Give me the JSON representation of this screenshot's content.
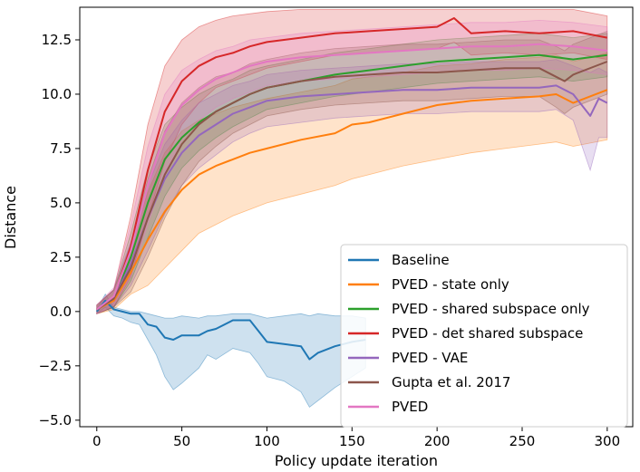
{
  "chart_data": {
    "type": "line",
    "title": "",
    "xlabel": "Policy update iteration",
    "ylabel": "Distance",
    "xlim": [
      -10,
      315
    ],
    "ylim": [
      -5.3,
      14
    ],
    "xticks": [
      {
        "value": 0,
        "label": "0"
      },
      {
        "value": 50,
        "label": "50"
      },
      {
        "value": 100,
        "label": "100"
      },
      {
        "value": 150,
        "label": "150"
      },
      {
        "value": 200,
        "label": "200"
      },
      {
        "value": 250,
        "label": "250"
      },
      {
        "value": 300,
        "label": "300"
      }
    ],
    "yticks": [
      {
        "value": -5.0,
        "label": "−5.0"
      },
      {
        "value": -2.5,
        "label": "−2.5"
      },
      {
        "value": 0.0,
        "label": "0.0"
      },
      {
        "value": 2.5,
        "label": "2.5"
      },
      {
        "value": 5.0,
        "label": "5.0"
      },
      {
        "value": 7.5,
        "label": "7.5"
      },
      {
        "value": 10.0,
        "label": "10.0"
      },
      {
        "value": 12.5,
        "label": "12.5"
      }
    ],
    "grid": false,
    "legend_position": "lower-right",
    "shaded_band": "mean ± spread",
    "series": [
      {
        "name": "Baseline",
        "color": "#1f77b4",
        "x": [
          0,
          5,
          10,
          15,
          20,
          25,
          30,
          35,
          40,
          45,
          50,
          60,
          65,
          70,
          80,
          90,
          95,
          100,
          110,
          120,
          125,
          130,
          140,
          150,
          158
        ],
        "mean": [
          0.0,
          0.5,
          0.1,
          0.0,
          -0.1,
          -0.1,
          -0.6,
          -0.7,
          -1.2,
          -1.3,
          -1.1,
          -1.1,
          -0.9,
          -0.8,
          -0.4,
          -0.4,
          -0.9,
          -1.4,
          -1.5,
          -1.6,
          -2.2,
          -1.9,
          -1.6,
          -1.4,
          -1.3
        ],
        "lower": [
          -0.1,
          0.2,
          -0.2,
          -0.3,
          -0.5,
          -0.6,
          -1.3,
          -2.0,
          -3.0,
          -3.6,
          -3.3,
          -2.6,
          -2.0,
          -2.2,
          -1.7,
          -1.9,
          -2.4,
          -3.0,
          -3.2,
          -3.7,
          -4.4,
          -4.1,
          -3.5,
          -3.0,
          -2.6
        ],
        "upper": [
          0.1,
          0.8,
          0.2,
          0.1,
          0.0,
          0.0,
          -0.1,
          -0.2,
          -0.3,
          -0.3,
          -0.2,
          -0.3,
          -0.2,
          -0.2,
          -0.1,
          -0.1,
          -0.2,
          -0.3,
          -0.2,
          -0.1,
          -0.2,
          -0.1,
          -0.2,
          -0.2,
          -0.3
        ]
      },
      {
        "name": "PVED - state only",
        "color": "#ff7f0e",
        "x": [
          0,
          10,
          20,
          30,
          40,
          50,
          60,
          70,
          80,
          90,
          100,
          120,
          140,
          150,
          160,
          180,
          200,
          220,
          240,
          260,
          270,
          280,
          300
        ],
        "mean": [
          0.1,
          0.5,
          1.8,
          3.3,
          4.6,
          5.6,
          6.3,
          6.7,
          7.0,
          7.3,
          7.5,
          7.9,
          8.2,
          8.6,
          8.7,
          9.1,
          9.5,
          9.7,
          9.8,
          9.9,
          10.0,
          9.6,
          10.2
        ],
        "lower": [
          -0.1,
          0.1,
          0.8,
          1.2,
          2.0,
          2.8,
          3.6,
          4.0,
          4.4,
          4.7,
          5.0,
          5.4,
          5.8,
          6.1,
          6.3,
          6.7,
          7.0,
          7.3,
          7.5,
          7.7,
          7.8,
          7.6,
          7.9
        ],
        "upper": [
          0.3,
          1.0,
          3.0,
          5.5,
          7.3,
          8.3,
          8.8,
          9.1,
          9.4,
          9.6,
          9.8,
          10.1,
          10.4,
          10.7,
          10.8,
          11.0,
          11.3,
          11.4,
          11.6,
          11.7,
          11.8,
          11.5,
          11.9
        ]
      },
      {
        "name": "PVED - shared subspace only",
        "color": "#2ca02c",
        "x": [
          0,
          10,
          20,
          30,
          40,
          50,
          60,
          70,
          80,
          90,
          100,
          120,
          140,
          160,
          180,
          200,
          220,
          240,
          260,
          280,
          300
        ],
        "mean": [
          0.1,
          0.6,
          2.5,
          5.0,
          7.0,
          8.0,
          8.7,
          9.2,
          9.6,
          10.0,
          10.3,
          10.6,
          10.9,
          11.1,
          11.3,
          11.5,
          11.6,
          11.7,
          11.8,
          11.6,
          11.8
        ],
        "lower": [
          -0.1,
          0.2,
          1.4,
          3.4,
          5.3,
          6.6,
          7.4,
          8.0,
          8.5,
          8.9,
          9.3,
          9.6,
          9.9,
          10.1,
          10.3,
          10.5,
          10.6,
          10.7,
          10.8,
          10.6,
          10.8
        ],
        "upper": [
          0.3,
          1.0,
          3.6,
          6.6,
          8.6,
          9.4,
          10.0,
          10.4,
          10.7,
          11.1,
          11.3,
          11.6,
          11.9,
          12.1,
          12.3,
          12.5,
          12.6,
          12.7,
          12.8,
          12.6,
          12.8
        ]
      },
      {
        "name": "PVED - det shared subspace",
        "color": "#d62728",
        "x": [
          0,
          10,
          20,
          30,
          40,
          50,
          60,
          70,
          80,
          90,
          100,
          120,
          140,
          160,
          180,
          200,
          210,
          220,
          240,
          260,
          280,
          300
        ],
        "mean": [
          0.1,
          0.6,
          3.0,
          6.5,
          9.2,
          10.6,
          11.3,
          11.7,
          11.9,
          12.2,
          12.4,
          12.6,
          12.8,
          12.9,
          13.0,
          13.1,
          13.5,
          12.8,
          12.9,
          12.8,
          12.9,
          12.6
        ],
        "lower": [
          -0.1,
          0.2,
          1.6,
          4.3,
          6.9,
          8.6,
          9.6,
          10.3,
          10.6,
          10.9,
          11.2,
          11.5,
          11.8,
          11.9,
          12.0,
          12.1,
          12.4,
          11.8,
          11.9,
          11.8,
          11.9,
          11.6
        ],
        "upper": [
          0.3,
          1.0,
          4.4,
          8.6,
          11.3,
          12.5,
          13.1,
          13.4,
          13.6,
          13.7,
          13.8,
          13.9,
          13.9,
          13.9,
          13.9,
          13.9,
          13.9,
          13.9,
          13.9,
          13.9,
          13.9,
          13.6
        ]
      },
      {
        "name": "PVED - VAE",
        "color": "#9467bd",
        "x": [
          0,
          10,
          20,
          30,
          40,
          50,
          60,
          70,
          80,
          90,
          100,
          120,
          140,
          160,
          180,
          200,
          220,
          240,
          260,
          270,
          280,
          290,
          295,
          300
        ],
        "mean": [
          0.1,
          0.6,
          2.2,
          4.3,
          6.1,
          7.3,
          8.1,
          8.6,
          9.1,
          9.4,
          9.7,
          9.9,
          10.0,
          10.1,
          10.2,
          10.2,
          10.3,
          10.3,
          10.3,
          10.4,
          10.0,
          9.0,
          9.8,
          9.6
        ],
        "lower": [
          -0.1,
          0.2,
          1.2,
          2.8,
          4.5,
          5.8,
          6.6,
          7.2,
          7.8,
          8.2,
          8.5,
          8.7,
          8.9,
          9.0,
          9.1,
          9.1,
          9.2,
          9.2,
          9.2,
          9.3,
          8.8,
          6.5,
          8.0,
          8.0
        ],
        "upper": [
          0.3,
          1.0,
          3.2,
          5.8,
          7.7,
          8.8,
          9.6,
          10.0,
          10.4,
          10.6,
          10.9,
          11.1,
          11.2,
          11.3,
          11.4,
          11.4,
          11.5,
          11.5,
          11.5,
          11.6,
          11.3,
          11.0,
          11.2,
          11.0
        ]
      },
      {
        "name": "Gupta et al. 2017",
        "color": "#8c564b",
        "x": [
          0,
          10,
          20,
          30,
          40,
          50,
          60,
          70,
          80,
          90,
          100,
          120,
          140,
          160,
          180,
          200,
          220,
          240,
          260,
          270,
          275,
          280,
          300
        ],
        "mean": [
          0.1,
          0.6,
          2.0,
          4.3,
          6.3,
          7.7,
          8.6,
          9.2,
          9.6,
          10.0,
          10.3,
          10.6,
          10.8,
          10.9,
          11.0,
          11.0,
          11.1,
          11.2,
          11.2,
          10.8,
          10.6,
          10.9,
          11.5
        ],
        "lower": [
          -0.1,
          0.2,
          0.9,
          2.5,
          4.3,
          5.8,
          6.9,
          7.6,
          8.2,
          8.6,
          9.0,
          9.3,
          9.5,
          9.6,
          9.7,
          9.7,
          9.8,
          9.9,
          9.9,
          9.4,
          9.1,
          9.4,
          10.0
        ],
        "upper": [
          0.3,
          1.0,
          3.1,
          6.1,
          8.3,
          9.6,
          10.3,
          10.8,
          11.0,
          11.4,
          11.6,
          11.9,
          12.1,
          12.2,
          12.3,
          12.3,
          12.4,
          12.5,
          12.5,
          12.2,
          12.0,
          12.3,
          12.9
        ]
      },
      {
        "name": "PVED",
        "color": "#e377c2",
        "x": [
          0,
          10,
          20,
          30,
          40,
          50,
          60,
          70,
          80,
          90,
          100,
          120,
          140,
          160,
          180,
          200,
          220,
          240,
          260,
          280,
          300
        ],
        "mean": [
          0.1,
          0.7,
          2.8,
          5.8,
          8.2,
          9.5,
          10.2,
          10.7,
          11.0,
          11.3,
          11.5,
          11.7,
          11.8,
          11.9,
          12.0,
          12.1,
          12.2,
          12.2,
          12.3,
          12.2,
          12.0
        ],
        "lower": [
          -0.1,
          0.3,
          1.6,
          4.0,
          6.4,
          7.9,
          8.8,
          9.4,
          9.8,
          10.1,
          10.4,
          10.6,
          10.7,
          10.8,
          10.9,
          11.0,
          11.1,
          11.1,
          11.2,
          11.1,
          10.9
        ],
        "upper": [
          0.3,
          1.1,
          4.0,
          7.6,
          10.0,
          11.1,
          11.6,
          12.0,
          12.2,
          12.5,
          12.6,
          12.8,
          12.9,
          13.0,
          13.1,
          13.2,
          13.3,
          13.3,
          13.4,
          13.3,
          13.1
        ]
      }
    ]
  }
}
